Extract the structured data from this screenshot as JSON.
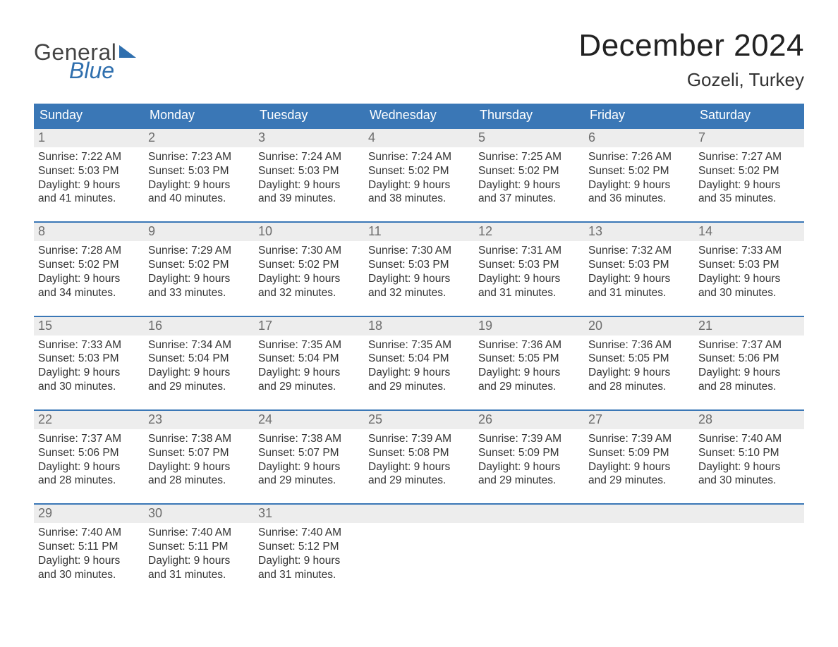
{
  "logo": {
    "general": "General",
    "blue": "Blue"
  },
  "header": {
    "month_title": "December 2024",
    "location": "Gozeli, Turkey"
  },
  "colors": {
    "header_bg": "#3a77b6",
    "header_text": "#ffffff",
    "daynum_bg": "#ededed",
    "daynum_text": "#6d6d6d",
    "body_text": "#333333",
    "logo_blue": "#2f6fae",
    "logo_gray": "#444444",
    "week_border": "#3a77b6"
  },
  "weekdays": [
    "Sunday",
    "Monday",
    "Tuesday",
    "Wednesday",
    "Thursday",
    "Friday",
    "Saturday"
  ],
  "days": [
    {
      "n": 1,
      "sunrise": "7:22 AM",
      "sunset": "5:03 PM",
      "dl_h": 9,
      "dl_m": 41
    },
    {
      "n": 2,
      "sunrise": "7:23 AM",
      "sunset": "5:03 PM",
      "dl_h": 9,
      "dl_m": 40
    },
    {
      "n": 3,
      "sunrise": "7:24 AM",
      "sunset": "5:03 PM",
      "dl_h": 9,
      "dl_m": 39
    },
    {
      "n": 4,
      "sunrise": "7:24 AM",
      "sunset": "5:02 PM",
      "dl_h": 9,
      "dl_m": 38
    },
    {
      "n": 5,
      "sunrise": "7:25 AM",
      "sunset": "5:02 PM",
      "dl_h": 9,
      "dl_m": 37
    },
    {
      "n": 6,
      "sunrise": "7:26 AM",
      "sunset": "5:02 PM",
      "dl_h": 9,
      "dl_m": 36
    },
    {
      "n": 7,
      "sunrise": "7:27 AM",
      "sunset": "5:02 PM",
      "dl_h": 9,
      "dl_m": 35
    },
    {
      "n": 8,
      "sunrise": "7:28 AM",
      "sunset": "5:02 PM",
      "dl_h": 9,
      "dl_m": 34
    },
    {
      "n": 9,
      "sunrise": "7:29 AM",
      "sunset": "5:02 PM",
      "dl_h": 9,
      "dl_m": 33
    },
    {
      "n": 10,
      "sunrise": "7:30 AM",
      "sunset": "5:02 PM",
      "dl_h": 9,
      "dl_m": 32
    },
    {
      "n": 11,
      "sunrise": "7:30 AM",
      "sunset": "5:03 PM",
      "dl_h": 9,
      "dl_m": 32
    },
    {
      "n": 12,
      "sunrise": "7:31 AM",
      "sunset": "5:03 PM",
      "dl_h": 9,
      "dl_m": 31
    },
    {
      "n": 13,
      "sunrise": "7:32 AM",
      "sunset": "5:03 PM",
      "dl_h": 9,
      "dl_m": 31
    },
    {
      "n": 14,
      "sunrise": "7:33 AM",
      "sunset": "5:03 PM",
      "dl_h": 9,
      "dl_m": 30
    },
    {
      "n": 15,
      "sunrise": "7:33 AM",
      "sunset": "5:03 PM",
      "dl_h": 9,
      "dl_m": 30
    },
    {
      "n": 16,
      "sunrise": "7:34 AM",
      "sunset": "5:04 PM",
      "dl_h": 9,
      "dl_m": 29
    },
    {
      "n": 17,
      "sunrise": "7:35 AM",
      "sunset": "5:04 PM",
      "dl_h": 9,
      "dl_m": 29
    },
    {
      "n": 18,
      "sunrise": "7:35 AM",
      "sunset": "5:04 PM",
      "dl_h": 9,
      "dl_m": 29
    },
    {
      "n": 19,
      "sunrise": "7:36 AM",
      "sunset": "5:05 PM",
      "dl_h": 9,
      "dl_m": 29
    },
    {
      "n": 20,
      "sunrise": "7:36 AM",
      "sunset": "5:05 PM",
      "dl_h": 9,
      "dl_m": 28
    },
    {
      "n": 21,
      "sunrise": "7:37 AM",
      "sunset": "5:06 PM",
      "dl_h": 9,
      "dl_m": 28
    },
    {
      "n": 22,
      "sunrise": "7:37 AM",
      "sunset": "5:06 PM",
      "dl_h": 9,
      "dl_m": 28
    },
    {
      "n": 23,
      "sunrise": "7:38 AM",
      "sunset": "5:07 PM",
      "dl_h": 9,
      "dl_m": 28
    },
    {
      "n": 24,
      "sunrise": "7:38 AM",
      "sunset": "5:07 PM",
      "dl_h": 9,
      "dl_m": 29
    },
    {
      "n": 25,
      "sunrise": "7:39 AM",
      "sunset": "5:08 PM",
      "dl_h": 9,
      "dl_m": 29
    },
    {
      "n": 26,
      "sunrise": "7:39 AM",
      "sunset": "5:09 PM",
      "dl_h": 9,
      "dl_m": 29
    },
    {
      "n": 27,
      "sunrise": "7:39 AM",
      "sunset": "5:09 PM",
      "dl_h": 9,
      "dl_m": 29
    },
    {
      "n": 28,
      "sunrise": "7:40 AM",
      "sunset": "5:10 PM",
      "dl_h": 9,
      "dl_m": 30
    },
    {
      "n": 29,
      "sunrise": "7:40 AM",
      "sunset": "5:11 PM",
      "dl_h": 9,
      "dl_m": 30
    },
    {
      "n": 30,
      "sunrise": "7:40 AM",
      "sunset": "5:11 PM",
      "dl_h": 9,
      "dl_m": 31
    },
    {
      "n": 31,
      "sunrise": "7:40 AM",
      "sunset": "5:12 PM",
      "dl_h": 9,
      "dl_m": 31
    }
  ],
  "labels": {
    "sunrise": "Sunrise:",
    "sunset": "Sunset:",
    "daylight_prefix": "Daylight:",
    "hours_word": "hours",
    "and_word": "and",
    "minutes_word": "minutes."
  },
  "layout": {
    "first_day_weekday_index": 0,
    "days_in_month": 31,
    "cols": 7
  }
}
